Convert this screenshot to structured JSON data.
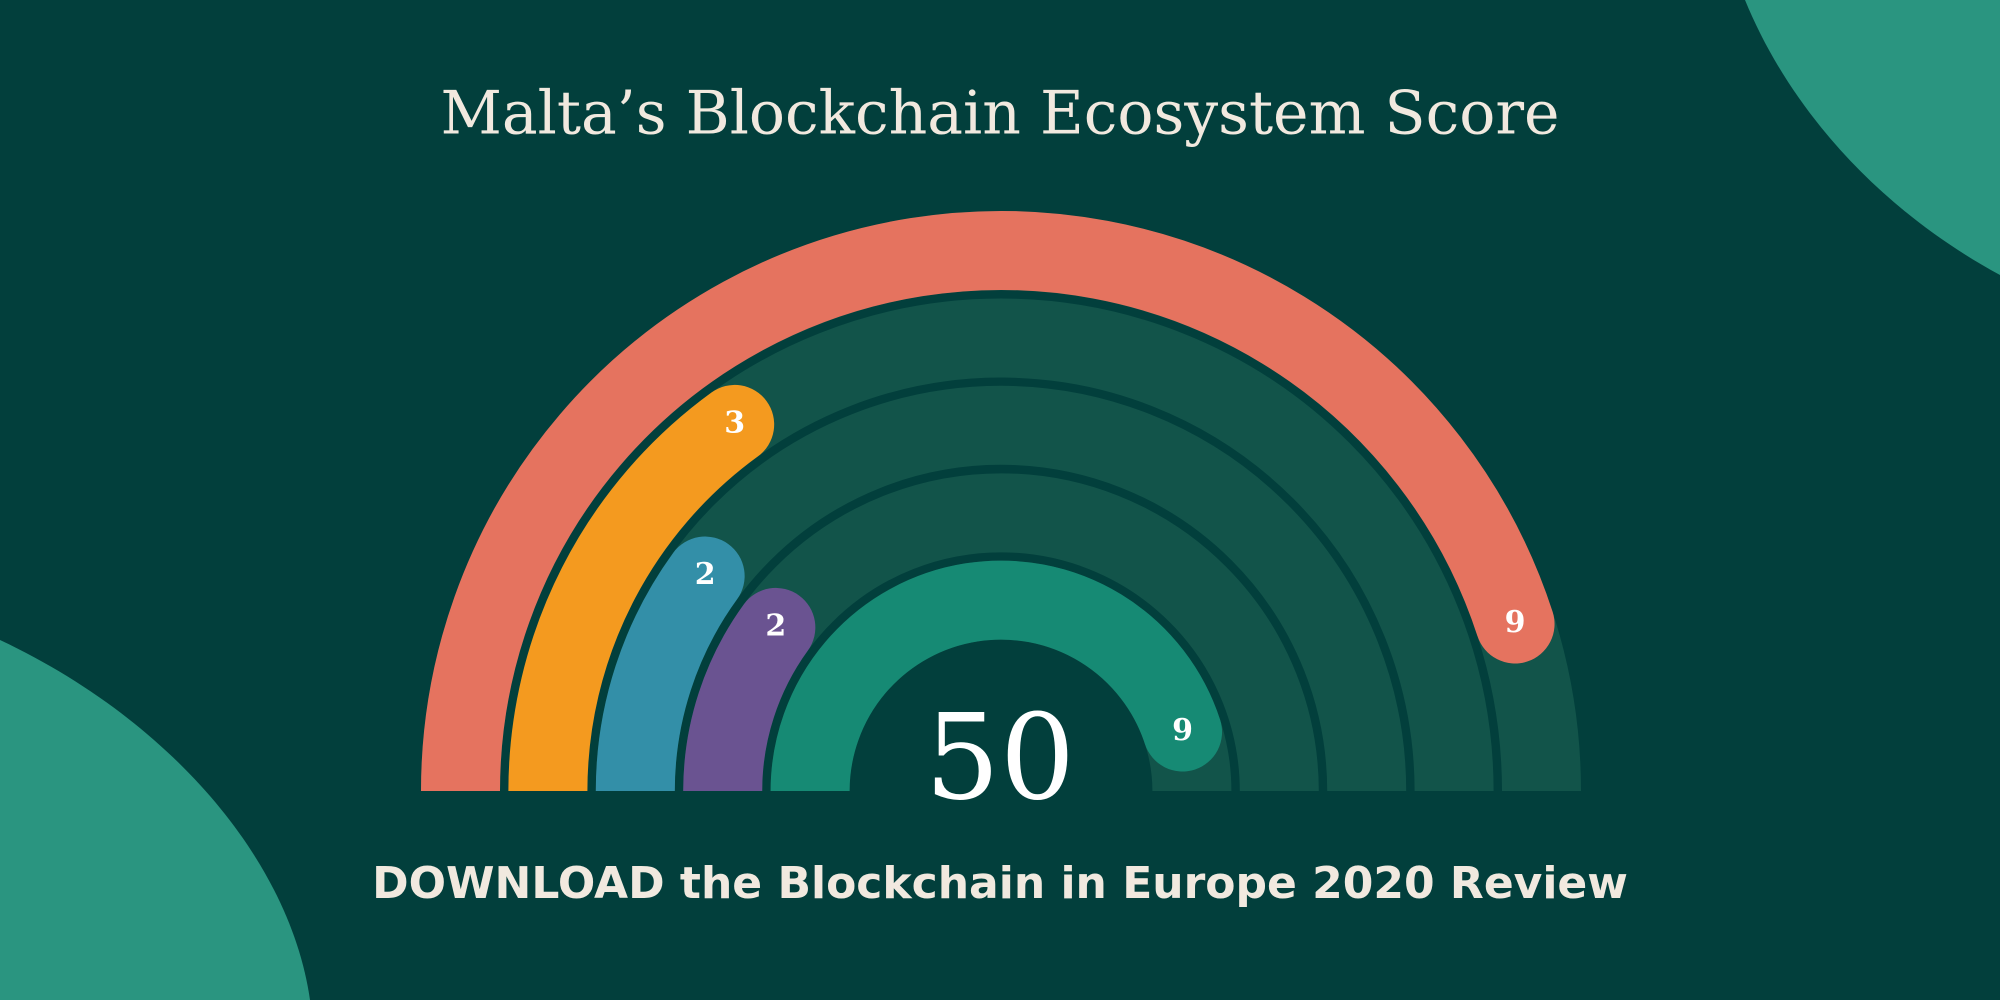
{
  "chart_data": {
    "type": "radial-bar",
    "title": "Malta’s Blockchain Ecosystem Score",
    "values": [
      9,
      3,
      2,
      2,
      9
    ],
    "colors": [
      "#e5735f",
      "#f49a1f",
      "#338fa8",
      "#6a5391",
      "#168a74"
    ],
    "ylim": [
      0,
      10
    ],
    "total": 50,
    "footer": "DOWNLOAD the Blockchain in Europe 2020 Review"
  }
}
